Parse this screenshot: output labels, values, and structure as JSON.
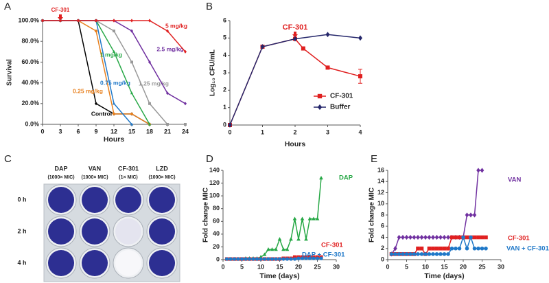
{
  "chart_data": [
    {
      "panel": "A",
      "type": "line",
      "xlabel": "Hours",
      "ylabel": "Survival",
      "x": [
        0,
        3,
        6,
        9,
        12,
        15,
        18,
        21,
        24
      ],
      "xlim": [
        0,
        24
      ],
      "xticks": [
        0,
        3,
        6,
        9,
        12,
        15,
        18,
        21,
        24
      ],
      "ylim": [
        0,
        100
      ],
      "yticks": [
        {
          "value": 0,
          "label": "0.0%"
        },
        {
          "value": 20,
          "label": "20.0%"
        },
        {
          "value": 40,
          "label": "40.0%"
        },
        {
          "value": 60,
          "label": "60.0%"
        },
        {
          "value": 80,
          "label": "80.0%"
        },
        {
          "value": 100,
          "label": "100.0%"
        }
      ],
      "annotation": {
        "text": "CF-301",
        "x": 3
      },
      "series": [
        {
          "name": "Control",
          "color": "#000000",
          "marker": "diamond",
          "values": [
            100,
            100,
            100,
            20,
            10,
            10,
            0,
            null,
            null
          ]
        },
        {
          "name": "0.25 mg/kg",
          "color": "#e8801e",
          "marker": "circle",
          "values": [
            100,
            100,
            100,
            90,
            10,
            10,
            0,
            null,
            null
          ]
        },
        {
          "name": "0.75 mg/kg",
          "color": "#1f78c8",
          "marker": "triangle",
          "values": [
            100,
            100,
            100,
            100,
            20,
            0,
            null,
            null,
            null
          ]
        },
        {
          "name": "1 mg/kg",
          "color": "#27a846",
          "marker": "triangle",
          "values": [
            100,
            100,
            100,
            100,
            70,
            30,
            0,
            null,
            null
          ]
        },
        {
          "name": "1.25 mg/kg",
          "color": "#999999",
          "marker": "square",
          "values": [
            100,
            100,
            100,
            100,
            90,
            60,
            20,
            0,
            0
          ]
        },
        {
          "name": "2.5 mg/kg",
          "color": "#7030a0",
          "marker": "diamond",
          "values": [
            100,
            100,
            100,
            100,
            100,
            90,
            60,
            30,
            20
          ]
        },
        {
          "name": "5 mg/kg",
          "color": "#e02020",
          "marker": "diamond",
          "values": [
            100,
            100,
            100,
            100,
            100,
            100,
            100,
            90,
            70
          ]
        }
      ]
    },
    {
      "panel": "B",
      "type": "line",
      "xlabel": "Hours",
      "ylabel": "Log₁₀ CFU/mL",
      "xlim": [
        0,
        4
      ],
      "xticks": [
        0,
        1,
        2,
        3,
        4
      ],
      "ylim": [
        0,
        6
      ],
      "yticks": [
        0,
        1,
        2,
        3,
        4,
        5,
        6
      ],
      "annotation": {
        "text": "CF-301",
        "x": 2
      },
      "legend": "lower right",
      "series": [
        {
          "name": "CF-301",
          "color": "#e02020",
          "marker": "square",
          "x": [
            0,
            1,
            2,
            2.25,
            3,
            4
          ],
          "values": [
            0,
            4.5,
            4.95,
            4.4,
            3.3,
            2.8
          ],
          "errors": [
            null,
            null,
            null,
            null,
            null,
            0.4
          ]
        },
        {
          "name": "Buffer",
          "color": "#25276b",
          "marker": "diamond",
          "x": [
            0,
            1,
            2,
            3,
            4
          ],
          "values": [
            0,
            4.5,
            4.95,
            5.2,
            5.0
          ]
        }
      ]
    },
    {
      "panel": "D",
      "type": "line",
      "xlabel": "Time (days)",
      "ylabel": "Fold change MIC",
      "x": [
        1,
        2,
        3,
        4,
        5,
        6,
        7,
        8,
        9,
        10,
        11,
        12,
        13,
        14,
        15,
        16,
        17,
        18,
        19,
        20,
        21,
        22,
        23,
        24,
        25,
        26
      ],
      "xlim": [
        0,
        30
      ],
      "xticks": [
        0,
        5,
        10,
        15,
        20,
        25,
        30
      ],
      "ylim": [
        0,
        140
      ],
      "yticks": [
        0,
        20,
        40,
        60,
        80,
        100,
        120,
        140
      ],
      "series": [
        {
          "name": "DAP",
          "color": "#27a846",
          "marker": "triangle",
          "values": [
            1,
            1,
            1,
            1,
            1,
            2,
            2,
            2,
            2,
            4,
            8,
            16,
            16,
            16,
            32,
            16,
            16,
            32,
            64,
            32,
            64,
            32,
            64,
            64,
            64,
            128
          ]
        },
        {
          "name": "CF-301",
          "color": "#e02020",
          "marker": "square",
          "values": [
            1,
            1,
            1,
            1,
            1,
            1,
            1,
            1,
            1,
            1,
            1,
            1,
            1,
            1,
            1,
            2,
            2,
            2,
            4,
            4,
            4,
            4,
            4,
            4,
            4,
            4
          ]
        },
        {
          "name": "DAP + CF-301",
          "color": "#1f78c8",
          "marker": "circle",
          "values": [
            1,
            1,
            1,
            1,
            1,
            1,
            1,
            1,
            1,
            1,
            1,
            1,
            1,
            1,
            1,
            1,
            1,
            1,
            1,
            2,
            2,
            2,
            2,
            2,
            2,
            2
          ]
        }
      ]
    },
    {
      "panel": "E",
      "type": "line",
      "xlabel": "Time (days)",
      "ylabel": "Fold change MIC",
      "x": [
        1,
        2,
        3,
        4,
        5,
        6,
        7,
        8,
        9,
        10,
        11,
        12,
        13,
        14,
        15,
        16,
        17,
        18,
        19,
        20,
        21,
        22,
        23,
        24,
        25,
        26
      ],
      "xlim": [
        0,
        30
      ],
      "xticks": [
        0,
        5,
        10,
        15,
        20,
        25,
        30
      ],
      "ylim": [
        0,
        16
      ],
      "yticks": [
        0,
        2,
        4,
        6,
        8,
        10,
        12,
        14,
        16
      ],
      "series": [
        {
          "name": "VAN",
          "color": "#7030a0",
          "marker": "diamond",
          "values": [
            1,
            2,
            4,
            4,
            4,
            4,
            4,
            4,
            4,
            4,
            4,
            4,
            4,
            4,
            4,
            4,
            4,
            4,
            4,
            4,
            8,
            8,
            8,
            16,
            16,
            null
          ]
        },
        {
          "name": "CF-301",
          "color": "#e02020",
          "marker": "square",
          "values": [
            1,
            1,
            1,
            1,
            1,
            1,
            1,
            2,
            2,
            1,
            2,
            2,
            2,
            2,
            2,
            2,
            4,
            4,
            4,
            4,
            4,
            4,
            4,
            4,
            4,
            4
          ]
        },
        {
          "name": "VAN + CF-301",
          "color": "#1f78c8",
          "marker": "circle",
          "values": [
            1,
            1,
            1,
            1,
            1,
            1,
            1,
            1,
            1,
            1,
            1,
            1,
            1,
            1,
            1,
            1,
            2,
            2,
            2,
            4,
            2,
            4,
            2,
            2,
            2,
            2
          ]
        }
      ]
    }
  ],
  "plate": {
    "panel": "C",
    "columns": [
      {
        "name": "DAP",
        "conc": "(1000× MIC)"
      },
      {
        "name": "VAN",
        "conc": "(1000× MIC)"
      },
      {
        "name": "CF-301",
        "conc": "(1× MIC)"
      },
      {
        "name": "LZD",
        "conc": "(1000× MIC)"
      }
    ],
    "rows": [
      "0 h",
      "2 h",
      "4 h"
    ],
    "wells": [
      [
        "#2d2f92",
        "#2d2f92",
        "#2d2f92",
        "#2d2f92"
      ],
      [
        "#2d2f92",
        "#2d2f92",
        "#e4e4ef",
        "#2d2f92"
      ],
      [
        "#2d2f92",
        "#2d2f92",
        "#f7f7fa",
        "#2d2f92"
      ]
    ]
  }
}
